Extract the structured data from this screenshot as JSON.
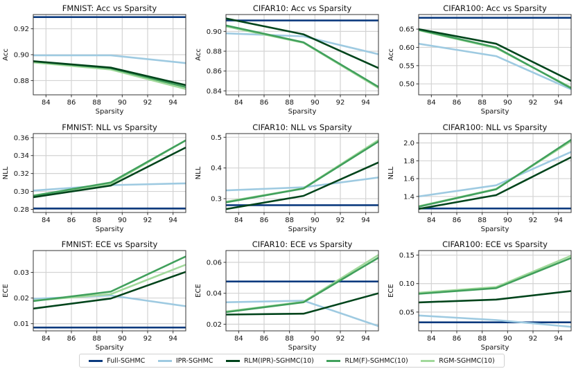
{
  "chart_data": [
    {
      "type": "line",
      "id": "fmnist-acc",
      "title": "FMNIST: Acc vs Sparsity",
      "xlabel": "Sparsity",
      "ylabel": "Acc",
      "xlim": [
        83,
        95
      ],
      "ylim": [
        0.869,
        0.931
      ],
      "xticks": [
        84,
        86,
        88,
        90,
        92,
        94
      ],
      "yticks": [
        0.88,
        0.9,
        0.92
      ],
      "ytick_labels": [
        "0.88",
        "0.90",
        "0.92"
      ],
      "x": [
        83,
        89.1,
        95
      ],
      "series": [
        {
          "name": "Full-SGHMC",
          "values": [
            0.929,
            0.929,
            0.929
          ]
        },
        {
          "name": "IPR-SGHMC",
          "values": [
            0.8995,
            0.8995,
            0.8935
          ]
        },
        {
          "name": "RLM(IPR)-SGHMC(10)",
          "values": [
            0.895,
            0.89,
            0.8765
          ]
        },
        {
          "name": "RLM(F)-SGHMC(10)",
          "values": [
            0.8948,
            0.8895,
            0.875
          ]
        },
        {
          "name": "RGM-SGHMC(10)",
          "values": [
            0.894,
            0.8885,
            0.8735
          ]
        }
      ]
    },
    {
      "type": "line",
      "id": "cifar10-acc",
      "title": "CIFAR10: Acc vs Sparsity",
      "xlabel": "Sparsity",
      "ylabel": "Acc",
      "xlim": [
        83,
        95
      ],
      "ylim": [
        0.836,
        0.917
      ],
      "xticks": [
        84,
        86,
        88,
        90,
        92,
        94
      ],
      "yticks": [
        0.84,
        0.86,
        0.88,
        0.9
      ],
      "ytick_labels": [
        "0.84",
        "0.86",
        "0.88",
        "0.90"
      ],
      "x": [
        83,
        89.1,
        95
      ],
      "series": [
        {
          "name": "Full-SGHMC",
          "values": [
            0.911,
            0.911,
            0.911
          ]
        },
        {
          "name": "IPR-SGHMC",
          "values": [
            0.898,
            0.895,
            0.877
          ]
        },
        {
          "name": "RLM(IPR)-SGHMC(10)",
          "values": [
            0.913,
            0.897,
            0.863
          ]
        },
        {
          "name": "RLM(F)-SGHMC(10)",
          "values": [
            0.906,
            0.889,
            0.844
          ]
        },
        {
          "name": "RGM-SGHMC(10)",
          "values": [
            0.905,
            0.8885,
            0.843
          ]
        }
      ]
    },
    {
      "type": "line",
      "id": "cifar100-acc",
      "title": "CIFAR100: Acc vs Sparsity",
      "xlabel": "Sparsity",
      "ylabel": "Acc",
      "xlim": [
        83,
        95
      ],
      "ylim": [
        0.47,
        0.69
      ],
      "xticks": [
        84,
        86,
        88,
        90,
        92,
        94
      ],
      "yticks": [
        0.5,
        0.55,
        0.6,
        0.65
      ],
      "ytick_labels": [
        "0.50",
        "0.55",
        "0.60",
        "0.65"
      ],
      "x": [
        83,
        89.1,
        95
      ],
      "series": [
        {
          "name": "Full-SGHMC",
          "values": [
            0.681,
            0.681,
            0.681
          ]
        },
        {
          "name": "IPR-SGHMC",
          "values": [
            0.61,
            0.576,
            0.485
          ]
        },
        {
          "name": "RLM(IPR)-SGHMC(10)",
          "values": [
            0.65,
            0.61,
            0.508
          ]
        },
        {
          "name": "RLM(F)-SGHMC(10)",
          "values": [
            0.648,
            0.6,
            0.488
          ]
        },
        {
          "name": "RGM-SGHMC(10)",
          "values": [
            0.647,
            0.598,
            0.49
          ]
        }
      ]
    },
    {
      "type": "line",
      "id": "fmnist-nll",
      "title": "FMNIST: NLL vs Sparsity",
      "xlabel": "Sparsity",
      "ylabel": "NLL",
      "xlim": [
        83,
        95
      ],
      "ylim": [
        0.2765,
        0.3645
      ],
      "xticks": [
        84,
        86,
        88,
        90,
        92,
        94
      ],
      "yticks": [
        0.28,
        0.3,
        0.32,
        0.34,
        0.36
      ],
      "ytick_labels": [
        "0.28",
        "0.30",
        "0.32",
        "0.34",
        "0.36"
      ],
      "x": [
        83,
        89.1,
        95
      ],
      "series": [
        {
          "name": "Full-SGHMC",
          "values": [
            0.281,
            0.281,
            0.281
          ]
        },
        {
          "name": "IPR-SGHMC",
          "values": [
            0.301,
            0.307,
            0.309
          ]
        },
        {
          "name": "RLM(IPR)-SGHMC(10)",
          "values": [
            0.2935,
            0.3065,
            0.349
          ]
        },
        {
          "name": "RLM(F)-SGHMC(10)",
          "values": [
            0.295,
            0.31,
            0.357
          ]
        },
        {
          "name": "RGM-SGHMC(10)",
          "values": [
            0.2955,
            0.3085,
            0.357
          ]
        }
      ]
    },
    {
      "type": "line",
      "id": "cifar10-nll",
      "title": "CIFAR10: NLL vs Sparsity",
      "xlabel": "Sparsity",
      "ylabel": "NLL",
      "xlim": [
        83,
        95
      ],
      "ylim": [
        0.255,
        0.512
      ],
      "xticks": [
        84,
        86,
        88,
        90,
        92,
        94
      ],
      "yticks": [
        0.3,
        0.4,
        0.5
      ],
      "ytick_labels": [
        "0.3",
        "0.4",
        "0.5"
      ],
      "x": [
        83,
        89.1,
        95
      ],
      "series": [
        {
          "name": "Full-SGHMC",
          "values": [
            0.279,
            0.279,
            0.279
          ]
        },
        {
          "name": "IPR-SGHMC",
          "values": [
            0.327,
            0.337,
            0.369
          ]
        },
        {
          "name": "RLM(IPR)-SGHMC(10)",
          "values": [
            0.266,
            0.309,
            0.418
          ]
        },
        {
          "name": "RLM(F)-SGHMC(10)",
          "values": [
            0.288,
            0.333,
            0.486
          ]
        },
        {
          "name": "RGM-SGHMC(10)",
          "values": [
            0.29,
            0.334,
            0.491
          ]
        }
      ]
    },
    {
      "type": "line",
      "id": "cifar100-nll",
      "title": "CIFAR100: NLL vs Sparsity",
      "xlabel": "Sparsity",
      "ylabel": "NLL",
      "xlim": [
        83,
        95
      ],
      "ylim": [
        1.22,
        2.105
      ],
      "xticks": [
        84,
        86,
        88,
        90,
        92,
        94
      ],
      "yticks": [
        1.4,
        1.6,
        1.8,
        2.0
      ],
      "ytick_labels": [
        "1.4",
        "1.6",
        "1.8",
        "2.0"
      ],
      "x": [
        83,
        89.1,
        95
      ],
      "series": [
        {
          "name": "Full-SGHMC",
          "values": [
            1.265,
            1.265,
            1.265
          ]
        },
        {
          "name": "IPR-SGHMC",
          "values": [
            1.4,
            1.525,
            1.9
          ]
        },
        {
          "name": "RLM(IPR)-SGHMC(10)",
          "values": [
            1.26,
            1.415,
            1.84
          ]
        },
        {
          "name": "RLM(F)-SGHMC(10)",
          "values": [
            1.285,
            1.48,
            2.035
          ]
        },
        {
          "name": "RGM-SGHMC(10)",
          "values": [
            1.29,
            1.485,
            2.02
          ]
        }
      ]
    },
    {
      "type": "line",
      "id": "fmnist-ece",
      "title": "FMNIST: ECE vs Sparsity",
      "xlabel": "Sparsity",
      "ylabel": "ECE",
      "xlim": [
        83,
        95
      ],
      "ylim": [
        0.0072,
        0.0385
      ],
      "xticks": [
        84,
        86,
        88,
        90,
        92,
        94
      ],
      "yticks": [
        0.01,
        0.02,
        0.03
      ],
      "ytick_labels": [
        "0.01",
        "0.02",
        "0.03"
      ],
      "x": [
        83,
        89.1,
        95
      ],
      "series": [
        {
          "name": "Full-SGHMC",
          "values": [
            0.0085,
            0.0085,
            0.0085
          ]
        },
        {
          "name": "IPR-SGHMC",
          "values": [
            0.0197,
            0.021,
            0.0168
          ]
        },
        {
          "name": "RLM(IPR)-SGHMC(10)",
          "values": [
            0.0159,
            0.0198,
            0.0302
          ]
        },
        {
          "name": "RLM(F)-SGHMC(10)",
          "values": [
            0.0188,
            0.0225,
            0.0362
          ]
        },
        {
          "name": "RGM-SGHMC(10)",
          "values": [
            0.019,
            0.0215,
            0.033
          ]
        }
      ]
    },
    {
      "type": "line",
      "id": "cifar10-ece",
      "title": "CIFAR10: ECE vs Sparsity",
      "xlabel": "Sparsity",
      "ylabel": "ECE",
      "xlim": [
        83,
        95
      ],
      "ylim": [
        0.0157,
        0.0676
      ],
      "xticks": [
        84,
        86,
        88,
        90,
        92,
        94
      ],
      "yticks": [
        0.02,
        0.04,
        0.06
      ],
      "ytick_labels": [
        "0.02",
        "0.04",
        "0.06"
      ],
      "x": [
        83,
        89.1,
        95
      ],
      "series": [
        {
          "name": "Full-SGHMC",
          "values": [
            0.0476,
            0.0476,
            0.0476
          ]
        },
        {
          "name": "IPR-SGHMC",
          "values": [
            0.0342,
            0.0352,
            0.0188
          ]
        },
        {
          "name": "RLM(IPR)-SGHMC(10)",
          "values": [
            0.0262,
            0.0268,
            0.04
          ]
        },
        {
          "name": "RLM(F)-SGHMC(10)",
          "values": [
            0.0278,
            0.0342,
            0.063
          ]
        },
        {
          "name": "RGM-SGHMC(10)",
          "values": [
            0.0282,
            0.0345,
            0.0648
          ]
        }
      ]
    },
    {
      "type": "line",
      "id": "cifar100-ece",
      "title": "CIFAR100: ECE vs Sparsity",
      "xlabel": "Sparsity",
      "ylabel": "ECE",
      "xlim": [
        83,
        95
      ],
      "ylim": [
        0.017,
        0.158
      ],
      "xticks": [
        84,
        86,
        88,
        90,
        92,
        94
      ],
      "yticks": [
        0.05,
        0.1,
        0.15
      ],
      "ytick_labels": [
        "0.05",
        "0.10",
        "0.15"
      ],
      "x": [
        83,
        89.1,
        95
      ],
      "series": [
        {
          "name": "Full-SGHMC",
          "values": [
            0.032,
            0.032,
            0.032
          ]
        },
        {
          "name": "IPR-SGHMC",
          "values": [
            0.044,
            0.036,
            0.024
          ]
        },
        {
          "name": "RLM(IPR)-SGHMC(10)",
          "values": [
            0.067,
            0.072,
            0.087
          ]
        },
        {
          "name": "RLM(F)-SGHMC(10)",
          "values": [
            0.082,
            0.092,
            0.145
          ]
        },
        {
          "name": "RGM-SGHMC(10)",
          "values": [
            0.084,
            0.094,
            0.149
          ]
        }
      ]
    }
  ],
  "legend": {
    "placement": "bottom-center",
    "items": [
      {
        "name": "Full-SGHMC",
        "color": "#0b3a7e"
      },
      {
        "name": "IPR-SGHMC",
        "color": "#9ecae1"
      },
      {
        "name": "RLM(IPR)-SGHMC(10)",
        "color": "#00441b"
      },
      {
        "name": "RLM(F)-SGHMC(10)",
        "color": "#41a05c"
      },
      {
        "name": "RGM-SGHMC(10)",
        "color": "#a1d99b"
      }
    ]
  }
}
